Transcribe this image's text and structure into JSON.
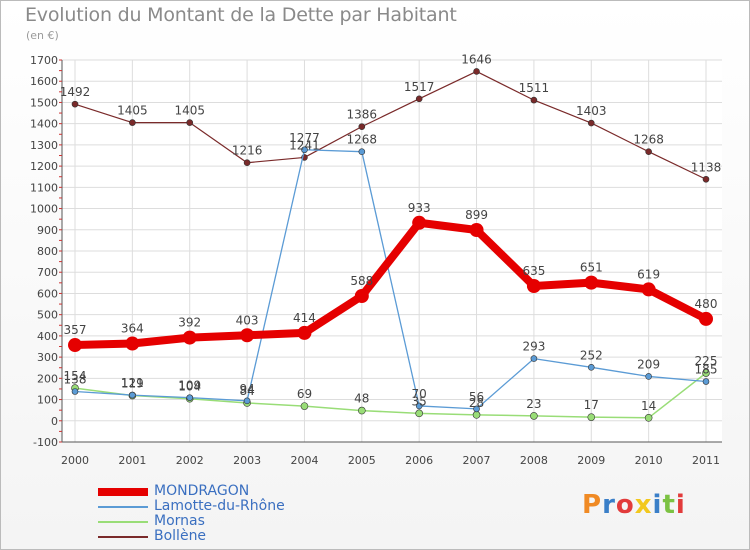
{
  "header": {
    "title": "Evolution du Montant de la Dette par Habitant",
    "unit": "(en €)"
  },
  "brand": {
    "text": "Proxiti",
    "colors": [
      "#f08a24",
      "#3a7fc8",
      "#e23b3b",
      "#f2c81e",
      "#3a7fc8",
      "#7cc242",
      "#e23b3b"
    ]
  },
  "chart_data": {
    "type": "line",
    "title": "Evolution du Montant de la Dette par Habitant",
    "ylabel": "(en €)",
    "xlabel": "",
    "ylim": [
      -100,
      1700
    ],
    "yticks": [
      -100,
      0,
      100,
      200,
      300,
      400,
      500,
      600,
      700,
      800,
      900,
      1000,
      1100,
      1200,
      1300,
      1400,
      1500,
      1600,
      1700
    ],
    "x": [
      "2000",
      "2001",
      "2002",
      "2003",
      "2004",
      "2005",
      "2006",
      "2007",
      "2008",
      "2009",
      "2010",
      "2011"
    ],
    "grid": true,
    "legend_position": "bottom-left",
    "series": [
      {
        "name": "MONDRAGON",
        "color": "#e50000",
        "values": [
          357,
          364,
          392,
          403,
          414,
          588,
          933,
          899,
          635,
          651,
          619,
          480
        ],
        "labels": [
          "357",
          "364",
          "392",
          "403",
          "414",
          "588",
          "933",
          "899",
          "635",
          "651",
          "619",
          "480"
        ]
      },
      {
        "name": "Lamotte-du-Rhône",
        "color": "#5b9bd5",
        "values": [
          138,
          121,
          109,
          94,
          1277,
          1268,
          70,
          56,
          293,
          252,
          209,
          185
        ],
        "labels": [
          "138",
          "121",
          "109",
          "94",
          "1277",
          "1268",
          "70",
          "56",
          "293",
          "252",
          "209",
          "185"
        ]
      },
      {
        "name": "Mornas",
        "color": "#99dd77",
        "values": [
          154,
          119,
          104,
          84,
          69,
          48,
          35,
          28,
          23,
          17,
          14,
          225
        ],
        "labels": [
          "154",
          "119",
          "104",
          "84",
          "69",
          "48",
          "35",
          "28",
          "23",
          "17",
          "14",
          "225"
        ]
      },
      {
        "name": "Bollène",
        "color": "#7a2a2a",
        "values": [
          1492,
          1405,
          1405,
          1216,
          1241,
          1386,
          1517,
          1646,
          1511,
          1403,
          1268,
          1138
        ],
        "labels": [
          "1492",
          "1405",
          "1405",
          "1216",
          "1241",
          "1386",
          "1517",
          "1646",
          "1511",
          "1403",
          "1268",
          "1138"
        ]
      }
    ]
  }
}
